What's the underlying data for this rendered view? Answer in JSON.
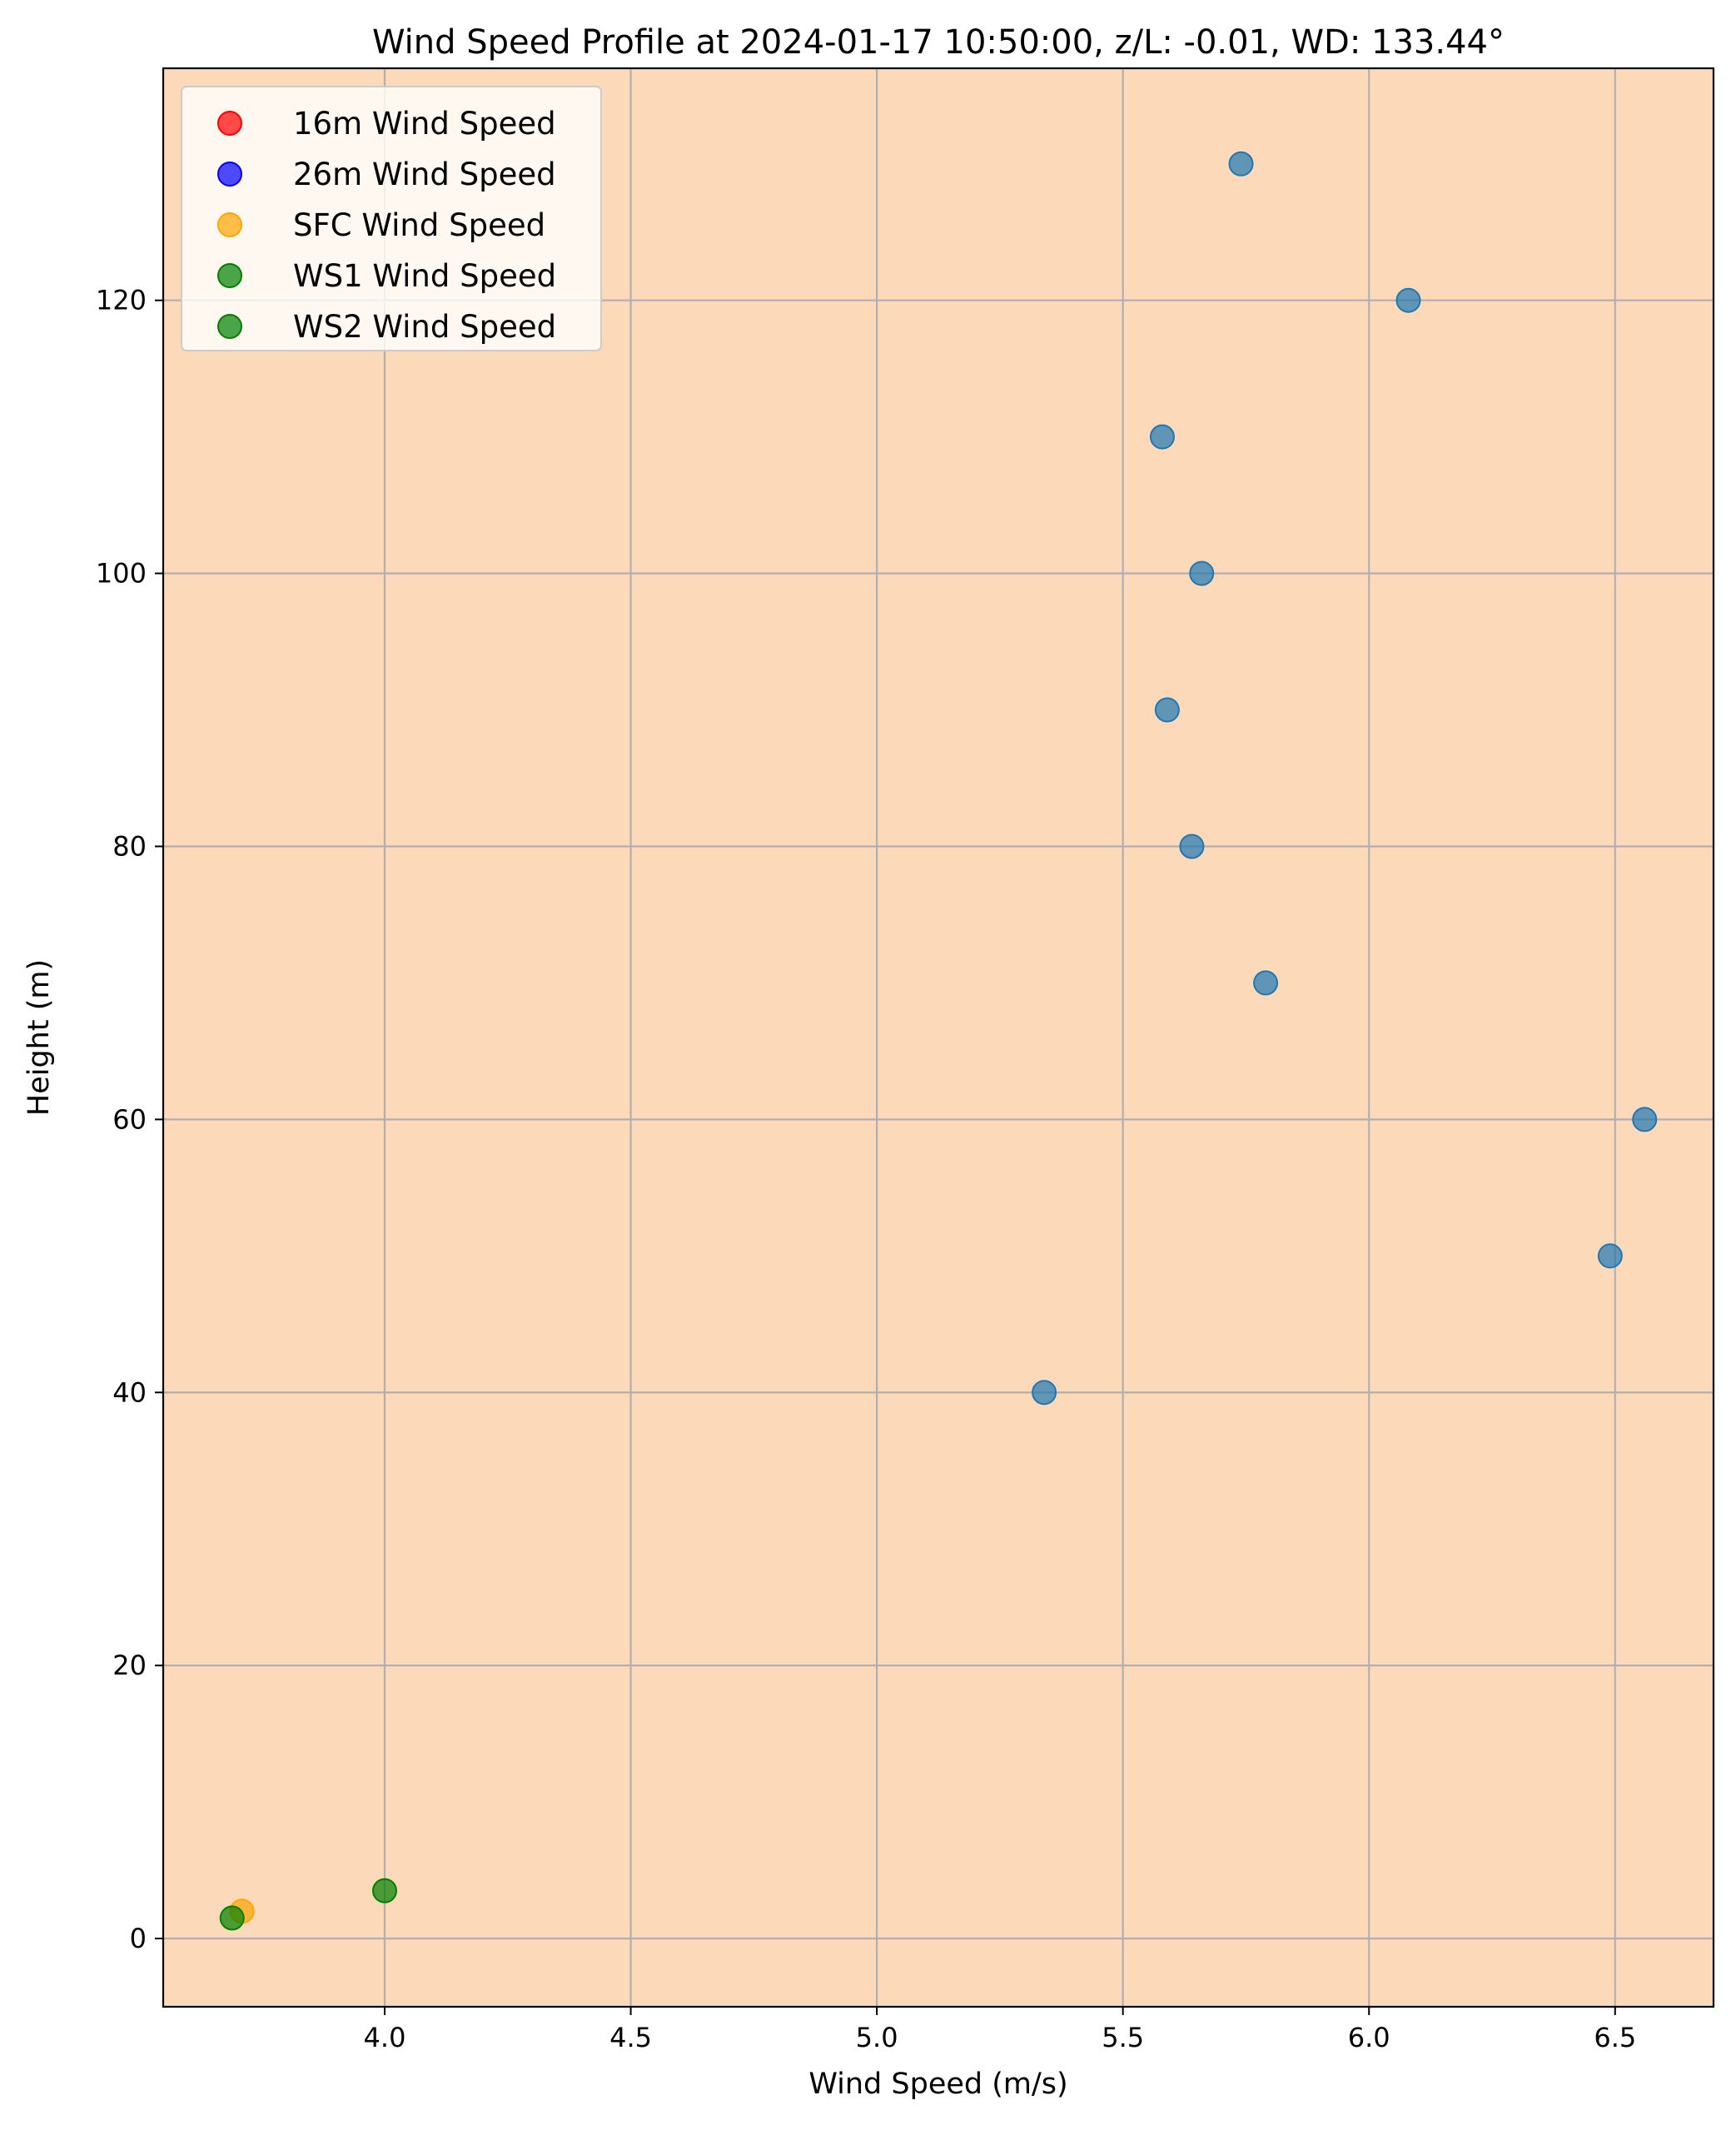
{
  "chart_data": {
    "type": "scatter",
    "title": "Wind Speed Profile at 2024-01-17 10:50:00, z/L: -0.01, WD: 133.44°",
    "xlabel": "Wind Speed (m/s)",
    "ylabel": "Height (m)",
    "xlim": [
      3.55,
      6.7
    ],
    "ylim": [
      -5,
      137
    ],
    "xticks": [
      "4.0",
      "4.5",
      "5.0",
      "5.5",
      "6.0",
      "6.5"
    ],
    "yticks": [
      "0",
      "20",
      "40",
      "60",
      "80",
      "100",
      "120"
    ],
    "grid": true,
    "background": "#fcd9b8",
    "legend_position": "upper-left",
    "series": [
      {
        "name": "16m Wind Speed",
        "color": "#ff0000",
        "points": []
      },
      {
        "name": "26m Wind Speed",
        "color": "#0000ff",
        "points": []
      },
      {
        "name": "SFC Wind Speed",
        "color": "#ffa500",
        "points": [
          {
            "x": 3.71,
            "y": 2
          }
        ]
      },
      {
        "name": "WS1 Wind Speed",
        "color": "#008000",
        "points": [
          {
            "x": 4.0,
            "y": 3.5
          }
        ]
      },
      {
        "name": "WS2 Wind Speed",
        "color": "#008000",
        "points": [
          {
            "x": 3.69,
            "y": 1.5
          }
        ]
      },
      {
        "color": "#1f77b4",
        "points": [
          {
            "x": 5.34,
            "y": 40
          },
          {
            "x": 6.49,
            "y": 50
          },
          {
            "x": 6.56,
            "y": 60
          },
          {
            "x": 5.79,
            "y": 70
          },
          {
            "x": 5.64,
            "y": 80
          },
          {
            "x": 5.59,
            "y": 90
          },
          {
            "x": 5.66,
            "y": 100
          },
          {
            "x": 5.58,
            "y": 110
          },
          {
            "x": 6.08,
            "y": 120
          },
          {
            "x": 5.74,
            "y": 130
          }
        ]
      }
    ]
  }
}
